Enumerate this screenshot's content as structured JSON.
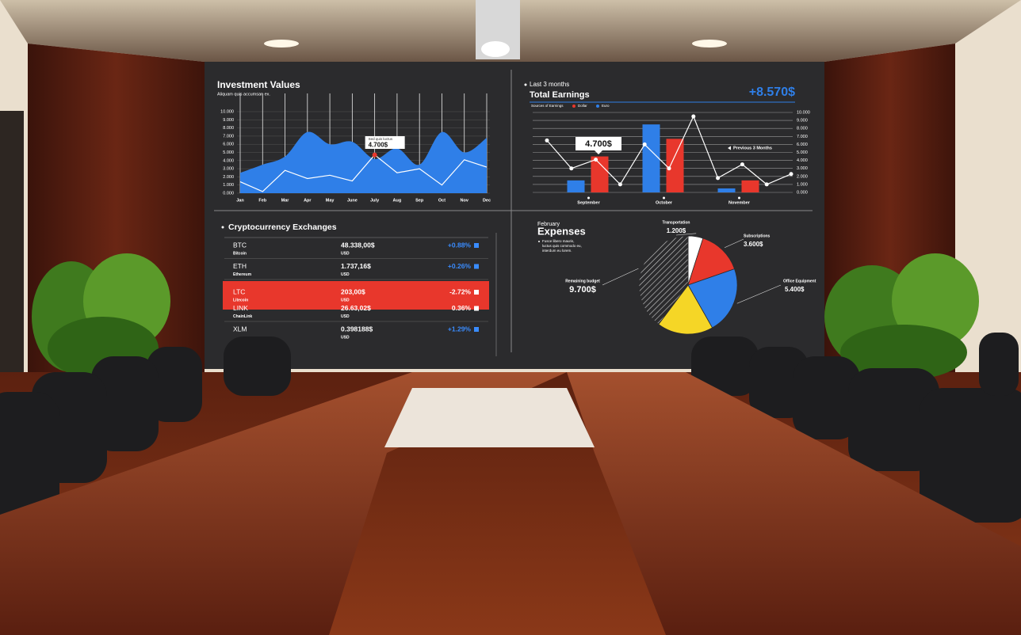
{
  "screen": {
    "investment": {
      "type": "area",
      "title": "Investment Values",
      "subtitle": "Aliquam quis accumsan ex.",
      "categories": [
        "Jan",
        "Feb",
        "Mar",
        "Apr",
        "May",
        "June",
        "July",
        "Aug",
        "Sep",
        "Oct",
        "Nov",
        "Dec"
      ],
      "series": [
        {
          "color": "#2f7fe8",
          "values": [
            2.5,
            3.5,
            4.5,
            7.5,
            6.0,
            6.3,
            4.2,
            5.5,
            3.5,
            7.5,
            5.0,
            6.8
          ]
        },
        {
          "color": "#ffffff",
          "values": [
            1.4,
            0.2,
            2.8,
            1.8,
            2.2,
            1.5,
            4.7,
            2.5,
            3.0,
            1.0,
            4.1,
            3.2
          ]
        }
      ],
      "ylim": [
        0,
        10
      ],
      "yticks": [
        {
          "value": 0,
          "label": "0.000"
        },
        {
          "value": 1,
          "label": "1.000"
        },
        {
          "value": 2,
          "label": "2.000"
        },
        {
          "value": 3,
          "label": "3.000"
        },
        {
          "value": 4,
          "label": "4.000"
        },
        {
          "value": 5,
          "label": "5.000"
        },
        {
          "value": 6,
          "label": "6.000"
        },
        {
          "value": 7,
          "label": "7.000"
        },
        {
          "value": 8,
          "label": "8.000"
        },
        {
          "value": 9,
          "label": "9.000"
        },
        {
          "value": 10,
          "label": "10.000"
        }
      ],
      "annotation": {
        "text": "Sed quis luctus",
        "value_label": "4.700$"
      }
    },
    "earnings": {
      "type": "bar",
      "kicker": "Last 3 months",
      "title": "Total Earnings",
      "total": "+8.570$",
      "legend_title": "Sources of Earnings",
      "categories": [
        "September",
        "October",
        "November"
      ],
      "series": [
        {
          "name": "Dollar",
          "color": "#e8372c",
          "values": [
            4.5,
            6.7,
            1.5
          ]
        },
        {
          "name": "Euro",
          "color": "#2f7fe8",
          "values": [
            1.5,
            8.5,
            0.5
          ]
        }
      ],
      "line": {
        "color": "#ffffff",
        "values": [
          6.5,
          3.0,
          4.1,
          1.0,
          6.0,
          3.0,
          9.5,
          1.8,
          3.5,
          1.0,
          2.3
        ]
      },
      "ylim": [
        0,
        10
      ],
      "yticks": [
        {
          "value": 0,
          "label": "0.000"
        },
        {
          "value": 1,
          "label": "1.000"
        },
        {
          "value": 2,
          "label": "2.000"
        },
        {
          "value": 3,
          "label": "3.000"
        },
        {
          "value": 4,
          "label": "4.000"
        },
        {
          "value": 5,
          "label": "5.000"
        },
        {
          "value": 6,
          "label": "6.000"
        },
        {
          "value": 7,
          "label": "7.000"
        },
        {
          "value": 8,
          "label": "8.000"
        },
        {
          "value": 9,
          "label": "9.000"
        },
        {
          "value": 10,
          "label": "10.000"
        }
      ],
      "annotation": "4.700$",
      "note": "Previous 3 Months"
    },
    "crypto": {
      "title": "Cryptocurrency Exchanges",
      "rows": [
        [
          "BTC",
          "Bitcoin",
          "48.338,00$",
          "USD",
          "+0.88%"
        ],
        [
          "ETH",
          "Ethereum",
          "1.737,16$",
          "USD",
          "+0.26%"
        ],
        [
          "LTC",
          "Litecoin",
          "203,00$",
          "USD",
          "-2.72%"
        ],
        [
          "LINK",
          "ChainLink",
          "26.63,02$",
          "USD",
          "0.36%"
        ],
        [
          "XLM",
          "",
          "0.398188$",
          "USD",
          "+1.29%"
        ]
      ]
    },
    "expenses": {
      "type": "pie",
      "kicker": "February",
      "title": "Expenses",
      "description": [
        "Fusce libero mauris,",
        "luctus quis commodo eu,",
        "interdum eu lorem."
      ],
      "slices": [
        {
          "name": "Transportation",
          "value": 1200,
          "value_label": "1.200$",
          "color": "#ffffff"
        },
        {
          "name": "Subscriptions",
          "value": 3600,
          "value_label": "3.600$",
          "color": "#e8372c"
        },
        {
          "name": "Office Equipment",
          "value": 5400,
          "value_label": "5.400$",
          "color": "#2f7fe8"
        },
        {
          "name": null,
          "value": 4500,
          "value_label": null,
          "color": "#f5d626"
        },
        {
          "name": "Remaining budget",
          "value": 9700,
          "value_label": "9.700$",
          "color": "hatch"
        }
      ]
    }
  }
}
